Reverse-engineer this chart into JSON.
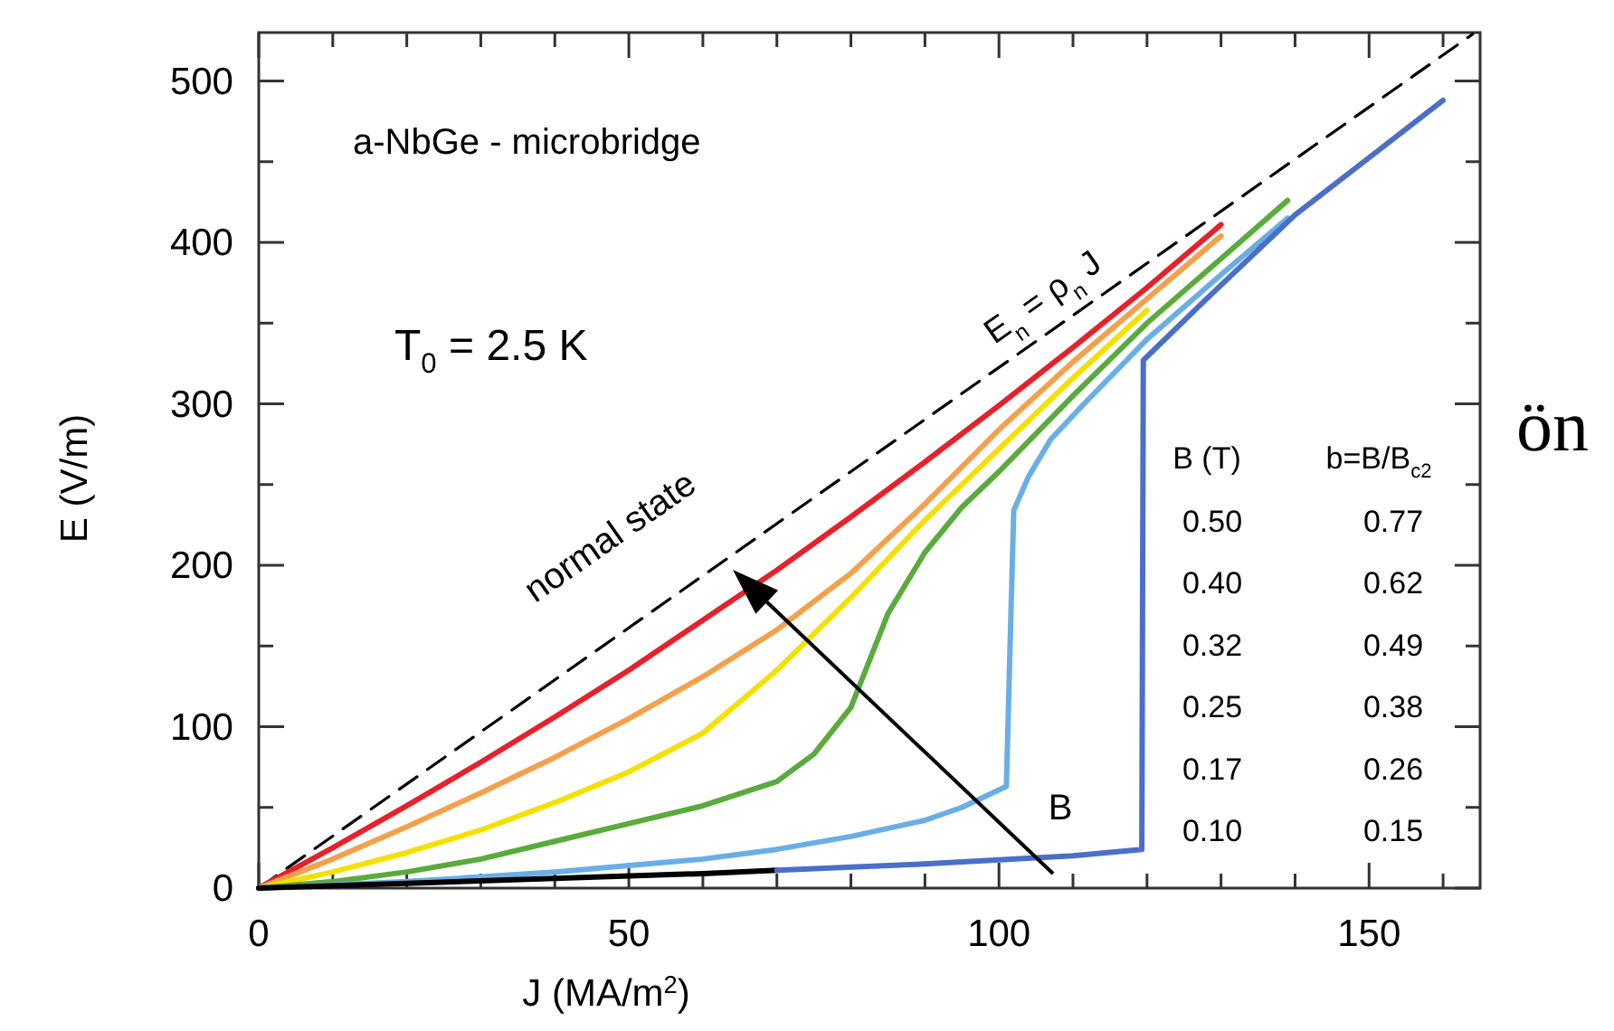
{
  "chart_data": {
    "type": "line",
    "xlabel": "J (MA/m$^{2}$)",
    "ylabel": "E (V/m)",
    "xlim": [
      0,
      165
    ],
    "ylim": [
      0,
      530
    ],
    "xticks": [
      0,
      {
        "value": 10,
        "label": null
      },
      {
        "value": 20,
        "label": null
      },
      {
        "value": 30,
        "label": null
      },
      {
        "value": 40,
        "label": null
      },
      50,
      {
        "value": 60,
        "label": null
      },
      {
        "value": 70,
        "label": null
      },
      {
        "value": 80,
        "label": null
      },
      {
        "value": 90,
        "label": null
      },
      100,
      {
        "value": 110,
        "label": null
      },
      {
        "value": 120,
        "label": null
      },
      {
        "value": 130,
        "label": null
      },
      {
        "value": 140,
        "label": null
      },
      150,
      {
        "value": 160,
        "label": null
      }
    ],
    "yticks": [
      0,
      {
        "value": 50,
        "label": null
      },
      100,
      {
        "value": 150,
        "label": null
      },
      200,
      {
        "value": 250,
        "label": null
      },
      300,
      {
        "value": 350,
        "label": null
      },
      400,
      {
        "value": 450,
        "label": null
      },
      500
    ],
    "series": [
      {
        "name": "E$_{n}$ = ρ$_{n}$ J",
        "color": "#000000",
        "line_style": "dashed",
        "x": [
          0,
          164
        ],
        "values": [
          0,
          529
        ]
      },
      {
        "color": "#e8202a",
        "x": [
          0,
          10,
          20,
          30,
          40,
          50,
          60,
          70,
          80,
          90,
          100,
          110,
          120,
          130
        ],
        "values": [
          0,
          25,
          51,
          78,
          106,
          135,
          166,
          197,
          230,
          264,
          299,
          335,
          372,
          411
        ]
      },
      {
        "color": "#f5a04a",
        "x": [
          0,
          10,
          20,
          30,
          40,
          50,
          60,
          70,
          80,
          90,
          100,
          110,
          120,
          130
        ],
        "values": [
          0,
          18,
          38,
          59,
          81,
          105,
          131,
          160,
          195,
          238,
          284,
          326,
          365,
          404
        ]
      },
      {
        "color": "#f5e000",
        "x": [
          0,
          10,
          20,
          30,
          40,
          50,
          60,
          70,
          80,
          90,
          100,
          110,
          120
        ],
        "values": [
          0,
          10,
          22,
          36,
          53,
          72,
          96,
          135,
          180,
          228,
          272,
          316,
          358
        ]
      },
      {
        "color": "#5aab3c",
        "x": [
          0,
          10,
          20,
          30,
          40,
          50,
          60,
          70,
          75,
          80,
          85,
          90,
          95,
          100,
          110,
          120,
          130,
          139
        ],
        "values": [
          0,
          4,
          10,
          18,
          29,
          40,
          51,
          66,
          83,
          112,
          170,
          208,
          236,
          258,
          305,
          350,
          390,
          426
        ]
      },
      {
        "color": "#6aaee6",
        "x": [
          0,
          20,
          40,
          60,
          70,
          80,
          90,
          95,
          101,
          101.5,
          102,
          104,
          107,
          111.5,
          120,
          130,
          139
        ],
        "values": [
          0,
          4,
          10,
          18,
          24,
          32,
          42,
          50,
          63,
          150,
          234,
          255,
          278,
          300,
          340,
          380,
          415
        ]
      },
      {
        "color": "#000000",
        "x": [
          0,
          20,
          40,
          60,
          70
        ],
        "values": [
          0,
          3,
          6,
          9,
          11
        ]
      },
      {
        "color": "#4a6fc8",
        "x": [
          70,
          90,
          110,
          119.3,
          119.5,
          127.8,
          140,
          160
        ],
        "values": [
          11,
          15,
          20,
          24,
          327,
          364,
          417,
          488
        ]
      }
    ],
    "annotations": [
      "a-NbGe - microbridge",
      "T$_{0}$ = 2.5 K",
      "normal state",
      "B",
      "B (T)",
      "b=B/B$_{c2}$",
      "0.50",
      "0.77",
      "0.40",
      "0.62",
      "0.32",
      "0.49",
      "0.25",
      "0.38",
      "0.17",
      "0.26",
      "0.10",
      "0.15",
      "ön"
    ]
  }
}
